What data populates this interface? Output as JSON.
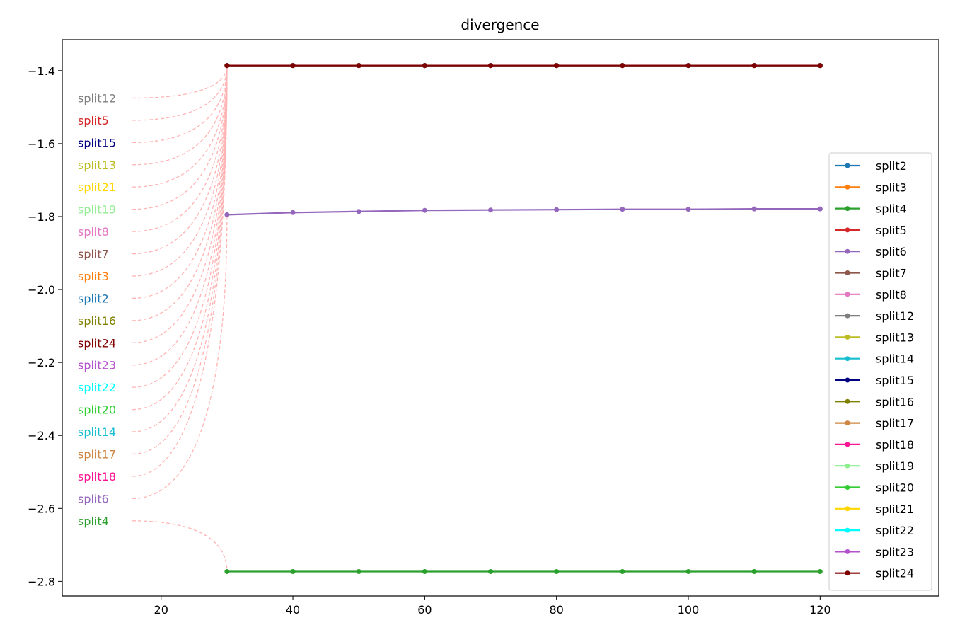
{
  "chart_data": {
    "type": "line",
    "title": "divergence",
    "xlabel": "",
    "ylabel": "",
    "xlim": [
      5,
      138
    ],
    "ylim": [
      -2.84,
      -1.315
    ],
    "x_ticks": [
      20,
      40,
      60,
      80,
      100,
      120
    ],
    "y_ticks": [
      -1.4,
      -1.6,
      -1.8,
      -2.0,
      -2.2,
      -2.4,
      -2.6,
      -2.8
    ],
    "grid": false,
    "legend_position": "right",
    "x": [
      30,
      40,
      50,
      60,
      70,
      80,
      90,
      100,
      110,
      120
    ],
    "series": [
      {
        "name": "split2",
        "color": "#1f77b4",
        "values": [
          -1.386,
          -1.386,
          -1.386,
          -1.386,
          -1.386,
          -1.386,
          -1.386,
          -1.386,
          -1.386,
          -1.386
        ]
      },
      {
        "name": "split3",
        "color": "#ff7f0e",
        "values": [
          -1.386,
          -1.386,
          -1.386,
          -1.386,
          -1.386,
          -1.386,
          -1.386,
          -1.386,
          -1.386,
          -1.386
        ]
      },
      {
        "name": "split4",
        "color": "#2ca02c",
        "values": [
          -2.773,
          -2.773,
          -2.773,
          -2.773,
          -2.773,
          -2.773,
          -2.773,
          -2.773,
          -2.773,
          -2.773
        ]
      },
      {
        "name": "split5",
        "color": "#d62728",
        "values": [
          -1.386,
          -1.386,
          -1.386,
          -1.386,
          -1.386,
          -1.386,
          -1.386,
          -1.386,
          -1.386,
          -1.386
        ]
      },
      {
        "name": "split6",
        "color": "#9467bd",
        "values": [
          -1.795,
          -1.789,
          -1.786,
          -1.783,
          -1.782,
          -1.781,
          -1.78,
          -1.78,
          -1.779,
          -1.779
        ]
      },
      {
        "name": "split7",
        "color": "#8c564b",
        "values": [
          -1.386,
          -1.386,
          -1.386,
          -1.386,
          -1.386,
          -1.386,
          -1.386,
          -1.386,
          -1.386,
          -1.386
        ]
      },
      {
        "name": "split8",
        "color": "#e377c2",
        "values": [
          -1.386,
          -1.386,
          -1.386,
          -1.386,
          -1.386,
          -1.386,
          -1.386,
          -1.386,
          -1.386,
          -1.386
        ]
      },
      {
        "name": "split12",
        "color": "#7f7f7f",
        "values": [
          -1.386,
          -1.386,
          -1.386,
          -1.386,
          -1.386,
          -1.386,
          -1.386,
          -1.386,
          -1.386,
          -1.386
        ]
      },
      {
        "name": "split13",
        "color": "#bcbd22",
        "values": [
          -1.386,
          -1.386,
          -1.386,
          -1.386,
          -1.386,
          -1.386,
          -1.386,
          -1.386,
          -1.386,
          -1.386
        ]
      },
      {
        "name": "split14",
        "color": "#17becf",
        "values": [
          -1.386,
          -1.386,
          -1.386,
          -1.386,
          -1.386,
          -1.386,
          -1.386,
          -1.386,
          -1.386,
          -1.386
        ]
      },
      {
        "name": "split15",
        "color": "#000080",
        "values": [
          -1.386,
          -1.386,
          -1.386,
          -1.386,
          -1.386,
          -1.386,
          -1.386,
          -1.386,
          -1.386,
          -1.386
        ]
      },
      {
        "name": "split16",
        "color": "#808000",
        "values": [
          -1.386,
          -1.386,
          -1.386,
          -1.386,
          -1.386,
          -1.386,
          -1.386,
          -1.386,
          -1.386,
          -1.386
        ]
      },
      {
        "name": "split17",
        "color": "#cd853f",
        "values": [
          -1.386,
          -1.386,
          -1.386,
          -1.386,
          -1.386,
          -1.386,
          -1.386,
          -1.386,
          -1.386,
          -1.386
        ]
      },
      {
        "name": "split18",
        "color": "#ff1493",
        "values": [
          -1.386,
          -1.386,
          -1.386,
          -1.386,
          -1.386,
          -1.386,
          -1.386,
          -1.386,
          -1.386,
          -1.386
        ]
      },
      {
        "name": "split19",
        "color": "#90ee90",
        "values": [
          -1.386,
          -1.386,
          -1.386,
          -1.386,
          -1.386,
          -1.386,
          -1.386,
          -1.386,
          -1.386,
          -1.386
        ]
      },
      {
        "name": "split20",
        "color": "#32cd32",
        "values": [
          -1.386,
          -1.386,
          -1.386,
          -1.386,
          -1.386,
          -1.386,
          -1.386,
          -1.386,
          -1.386,
          -1.386
        ]
      },
      {
        "name": "split21",
        "color": "#ffd700",
        "values": [
          -1.386,
          -1.386,
          -1.386,
          -1.386,
          -1.386,
          -1.386,
          -1.386,
          -1.386,
          -1.386,
          -1.386
        ]
      },
      {
        "name": "split22",
        "color": "#00ffff",
        "values": [
          -1.386,
          -1.386,
          -1.386,
          -1.386,
          -1.386,
          -1.386,
          -1.386,
          -1.386,
          -1.386,
          -1.386
        ]
      },
      {
        "name": "split23",
        "color": "#b452cd",
        "values": [
          -1.386,
          -1.386,
          -1.386,
          -1.386,
          -1.386,
          -1.386,
          -1.386,
          -1.386,
          -1.386,
          -1.386
        ]
      },
      {
        "name": "split24",
        "color": "#800000",
        "values": [
          -1.386,
          -1.386,
          -1.386,
          -1.386,
          -1.386,
          -1.386,
          -1.386,
          -1.386,
          -1.386,
          -1.386
        ]
      }
    ],
    "annotations": [
      {
        "text": "split12",
        "color": "#7f7f7f",
        "y": -1.475,
        "target": [
          30,
          -1.386
        ]
      },
      {
        "text": "split5",
        "color": "#d62728",
        "y": -1.536,
        "target": [
          30,
          -1.386
        ]
      },
      {
        "text": "split15",
        "color": "#000080",
        "y": -1.597,
        "target": [
          30,
          -1.386
        ]
      },
      {
        "text": "split13",
        "color": "#bcbd22",
        "y": -1.658,
        "target": [
          30,
          -1.386
        ]
      },
      {
        "text": "split21",
        "color": "#ffd700",
        "y": -1.719,
        "target": [
          30,
          -1.386
        ]
      },
      {
        "text": "split19",
        "color": "#90ee90",
        "y": -1.78,
        "target": [
          30,
          -1.386
        ]
      },
      {
        "text": "split8",
        "color": "#e377c2",
        "y": -1.841,
        "target": [
          30,
          -1.386
        ]
      },
      {
        "text": "split7",
        "color": "#8c564b",
        "y": -1.902,
        "target": [
          30,
          -1.386
        ]
      },
      {
        "text": "split3",
        "color": "#ff7f0e",
        "y": -1.963,
        "target": [
          30,
          -1.386
        ]
      },
      {
        "text": "split2",
        "color": "#1f77b4",
        "y": -2.024,
        "target": [
          30,
          -1.386
        ]
      },
      {
        "text": "split16",
        "color": "#808000",
        "y": -2.085,
        "target": [
          30,
          -1.386
        ]
      },
      {
        "text": "split24",
        "color": "#800000",
        "y": -2.146,
        "target": [
          30,
          -1.386
        ]
      },
      {
        "text": "split23",
        "color": "#b452cd",
        "y": -2.207,
        "target": [
          30,
          -1.386
        ]
      },
      {
        "text": "split22",
        "color": "#00ffff",
        "y": -2.268,
        "target": [
          30,
          -1.386
        ]
      },
      {
        "text": "split20",
        "color": "#32cd32",
        "y": -2.329,
        "target": [
          30,
          -1.386
        ]
      },
      {
        "text": "split14",
        "color": "#17becf",
        "y": -2.39,
        "target": [
          30,
          -1.386
        ]
      },
      {
        "text": "split17",
        "color": "#cd853f",
        "y": -2.451,
        "target": [
          30,
          -1.386
        ]
      },
      {
        "text": "split18",
        "color": "#ff1493",
        "y": -2.512,
        "target": [
          30,
          -1.386
        ]
      },
      {
        "text": "split6",
        "color": "#9467bd",
        "y": -2.573,
        "target": [
          30,
          -1.795
        ]
      },
      {
        "text": "split4",
        "color": "#2ca02c",
        "y": -2.634,
        "target": [
          30,
          -2.773
        ]
      }
    ]
  }
}
